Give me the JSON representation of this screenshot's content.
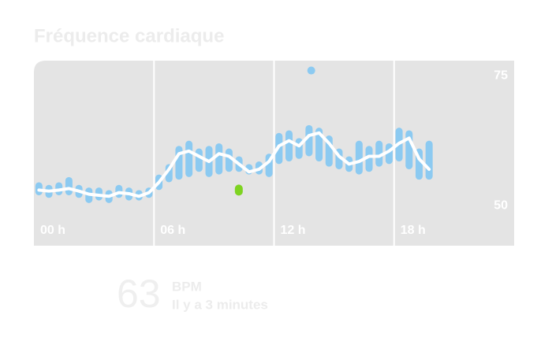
{
  "chart_data": {
    "type": "range-line",
    "title": "Fréquence cardiaque",
    "x": [
      0.25,
      0.75,
      1.25,
      1.75,
      2.25,
      2.75,
      3.25,
      3.75,
      4.25,
      4.75,
      5.25,
      5.75,
      6.25,
      6.75,
      7.25,
      7.75,
      8.25,
      8.75,
      9.25,
      9.75,
      10.25,
      10.75,
      11.25,
      11.75,
      12.25,
      12.75,
      13.25,
      13.75,
      14.25,
      14.75,
      15.25,
      15.75,
      16.25,
      16.75,
      17.25,
      17.75,
      18.25,
      18.75,
      19.25,
      19.75
    ],
    "values": [
      53,
      52.8,
      53,
      53.3,
      52.8,
      52.2,
      52,
      51.8,
      52.5,
      52.3,
      51.8,
      52.5,
      54.5,
      57,
      60,
      60.5,
      59.5,
      58.5,
      60,
      59.5,
      58,
      56.5,
      57,
      58.5,
      61.5,
      62.5,
      61.5,
      63.5,
      64,
      62,
      59.5,
      58,
      58.5,
      59.5,
      59.5,
      60.5,
      62,
      63,
      59,
      57
    ],
    "low": [
      52,
      51.5,
      52,
      52,
      51.5,
      50.5,
      51,
      50.5,
      51.5,
      51,
      51,
      51.5,
      53,
      54.5,
      55,
      55.5,
      56.5,
      55.5,
      56,
      56.5,
      56.5,
      56,
      56,
      55.5,
      58,
      58.5,
      59,
      59.5,
      58.5,
      57.5,
      57,
      56.5,
      56,
      56.5,
      57.5,
      58,
      58.5,
      57,
      55,
      55
    ],
    "high": [
      54.5,
      54,
      54.5,
      55.5,
      54,
      53.5,
      53.5,
      53,
      54,
      53.5,
      53,
      53.5,
      56,
      58,
      61.5,
      62.5,
      61,
      61.5,
      62,
      61,
      59.5,
      58,
      58.5,
      60,
      64,
      64.5,
      63,
      65.5,
      65,
      63.5,
      61,
      59.5,
      62.5,
      61.5,
      62.5,
      62,
      65,
      64.5,
      61,
      62.5
    ],
    "color": "#8ccaf1",
    "line_color": "#ffffff",
    "outliers": {
      "x": [
        13.86
      ],
      "values": [
        76
      ]
    },
    "highlight": {
      "x": 10.24,
      "value": 53,
      "color": "#7ed321"
    },
    "xlim": [
      0,
      24
    ],
    "xticks": [
      {
        "value": 0,
        "label": "00 h"
      },
      {
        "value": 6,
        "label": "06 h"
      },
      {
        "value": 12,
        "label": "12 h"
      },
      {
        "value": 18,
        "label": "18 h"
      }
    ],
    "ylim": [
      42.3,
      77.9
    ],
    "yticks": [
      50,
      75
    ]
  },
  "current": {
    "value": "63",
    "unit": "BPM",
    "time": "Il y a 3 minutes"
  }
}
